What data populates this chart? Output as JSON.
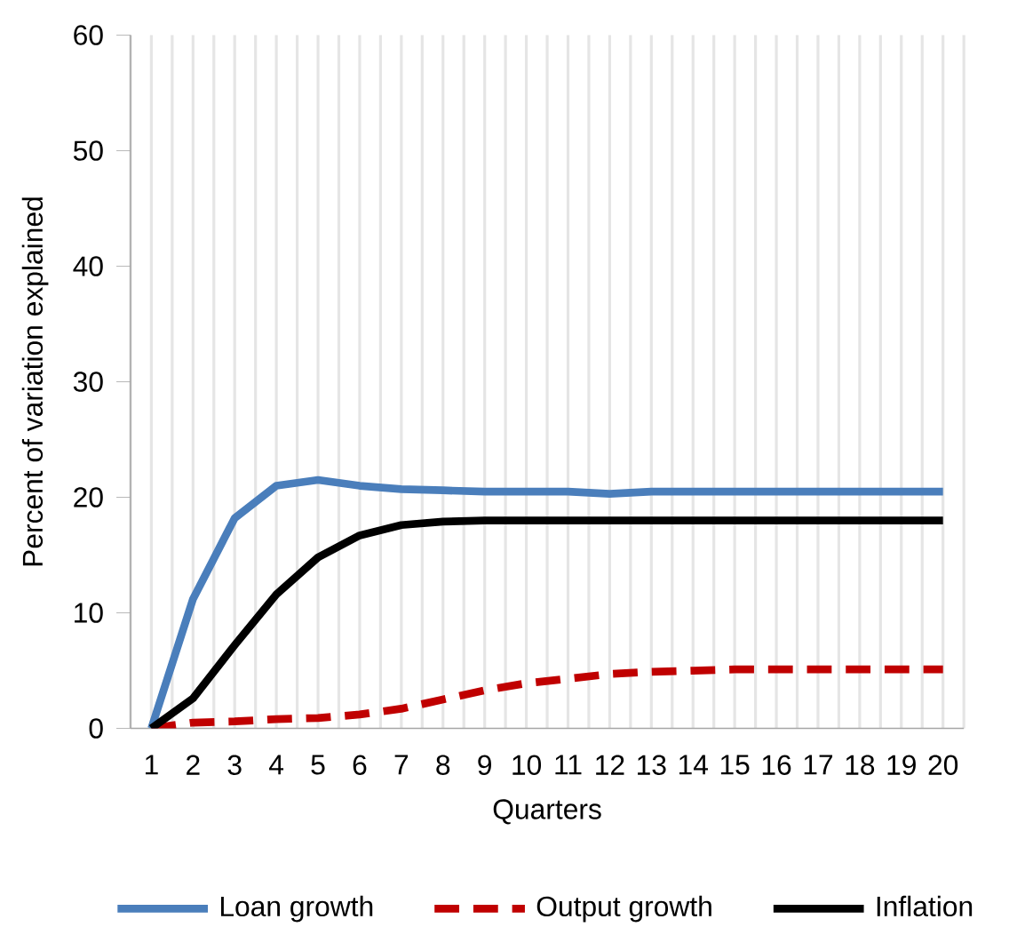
{
  "chart_data": {
    "type": "line",
    "xlabel": "Quarters",
    "ylabel": "Percent of variation explained",
    "categories": [
      "1",
      "2",
      "3",
      "4",
      "5",
      "6",
      "7",
      "8",
      "9",
      "10",
      "11",
      "12",
      "13",
      "14",
      "15",
      "16",
      "17",
      "18",
      "19",
      "20"
    ],
    "ylim": [
      0,
      60
    ],
    "yticks": [
      0,
      10,
      20,
      30,
      40,
      50,
      60
    ],
    "grid": "x",
    "legend": "bottom",
    "marker": "none",
    "series": [
      {
        "name": "Loan growth",
        "color": "#4a7ebb",
        "line_style": "solid",
        "values": [
          0,
          11.2,
          18.2,
          21.0,
          21.5,
          21.0,
          20.7,
          20.6,
          20.5,
          20.5,
          20.5,
          20.3,
          20.5,
          20.5,
          20.5,
          20.5,
          20.5,
          20.5,
          20.5,
          20.5
        ]
      },
      {
        "name": "Output growth",
        "color": "#c00000",
        "line_style": "dashed",
        "values": [
          0,
          0.5,
          0.6,
          0.8,
          0.9,
          1.2,
          1.7,
          2.5,
          3.3,
          3.9,
          4.3,
          4.7,
          4.9,
          5.0,
          5.1,
          5.1,
          5.1,
          5.1,
          5.1,
          5.1
        ]
      },
      {
        "name": "Inflation",
        "color": "#000000",
        "line_style": "solid",
        "values": [
          0,
          2.6,
          7.2,
          11.6,
          14.8,
          16.7,
          17.6,
          17.9,
          18.0,
          18.0,
          18.0,
          18.0,
          18.0,
          18.0,
          18.0,
          18.0,
          18.0,
          18.0,
          18.0,
          18.0
        ]
      }
    ]
  }
}
